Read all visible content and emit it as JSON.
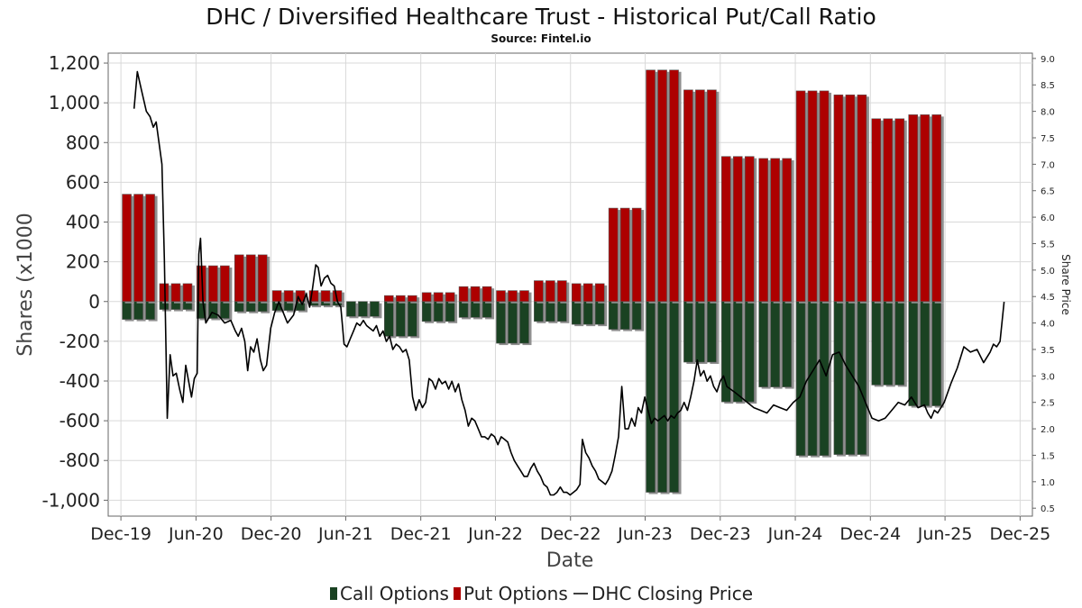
{
  "chart_data": {
    "type": "bar",
    "title": "DHC / Diversified Healthcare Trust - Historical Put/Call Ratio",
    "subtitle": "Source: Fintel.io",
    "xlabel": "Date",
    "ylabel": "Shares (x1000",
    "ylabel_right": "Share Price",
    "ylim": [
      -1080,
      1250
    ],
    "ylim_right": [
      0.35,
      9.1
    ],
    "xlim": [
      "2019-10-31",
      "2025-12-31"
    ],
    "grid": true,
    "legend_position": "bottom",
    "y_ticks": [
      "1,200",
      "1,000",
      "800",
      "600",
      "400",
      "200",
      "0",
      "-200",
      "-400",
      "-600",
      "-800",
      "-1,000"
    ],
    "y_tick_values": [
      1200,
      1000,
      800,
      600,
      400,
      200,
      0,
      -200,
      -400,
      -600,
      -800,
      -1000
    ],
    "y_right_ticks": [
      "9.0",
      "8.5",
      "8.0",
      "7.5",
      "7.0",
      "6.5",
      "6.0",
      "5.5",
      "5.0",
      "4.5",
      "4.0",
      "3.5",
      "3.0",
      "2.5",
      "2.0",
      "1.5",
      "1.0",
      "0.5"
    ],
    "y_right_tick_values": [
      9.0,
      8.5,
      8.0,
      7.5,
      7.0,
      6.5,
      6.0,
      5.5,
      5.0,
      4.5,
      4.0,
      3.5,
      3.0,
      2.5,
      2.0,
      1.5,
      1.0,
      0.5
    ],
    "x_ticks": [
      "Dec-19",
      "Jun-20",
      "Dec-20",
      "Jun-21",
      "Dec-21",
      "Jun-22",
      "Dec-22",
      "Jun-23",
      "Dec-23",
      "Jun-24",
      "Dec-24",
      "Jun-25",
      "Dec-25"
    ],
    "x_tick_dates": [
      "2019-12-01",
      "2020-06-01",
      "2020-12-01",
      "2021-06-01",
      "2021-12-01",
      "2022-06-01",
      "2022-12-01",
      "2023-06-01",
      "2023-12-01",
      "2024-06-01",
      "2024-12-01",
      "2025-06-01",
      "2025-12-01"
    ],
    "colors": {
      "call": "#1a4222",
      "put": "#ad0000",
      "price": "#000000",
      "grid": "#d9d9d9"
    },
    "series": [
      {
        "name": "Call Options",
        "type": "bar",
        "dates": [
          "2020-01-15",
          "2020-04-15",
          "2020-07-15",
          "2020-10-15",
          "2021-01-15",
          "2021-04-15",
          "2021-07-15",
          "2021-10-15",
          "2022-01-15",
          "2022-04-15",
          "2022-07-15",
          "2022-10-15",
          "2023-01-15",
          "2023-04-15",
          "2023-07-15",
          "2023-10-15",
          "2024-01-15",
          "2024-04-15",
          "2024-07-15",
          "2024-10-15",
          "2025-01-15",
          "2025-04-15"
        ],
        "values": [
          -90,
          -40,
          -85,
          -50,
          -45,
          -20,
          -75,
          -175,
          -100,
          -80,
          -210,
          -100,
          -115,
          -140,
          -960,
          -305,
          -505,
          -430,
          -775,
          -770,
          -420,
          -525
        ]
      },
      {
        "name": "Put Options",
        "type": "bar",
        "dates": [
          "2020-01-15",
          "2020-04-15",
          "2020-07-15",
          "2020-10-15",
          "2021-01-15",
          "2021-04-15",
          "2021-07-15",
          "2021-10-15",
          "2022-01-15",
          "2022-04-15",
          "2022-07-15",
          "2022-10-15",
          "2023-01-15",
          "2023-04-15",
          "2023-07-15",
          "2023-10-15",
          "2024-01-15",
          "2024-04-15",
          "2024-07-15",
          "2024-10-15",
          "2025-01-15",
          "2025-04-15"
        ],
        "values": [
          540,
          90,
          180,
          235,
          55,
          55,
          0,
          30,
          45,
          75,
          55,
          105,
          90,
          470,
          1165,
          1065,
          730,
          720,
          1060,
          1040,
          920,
          940
        ]
      },
      {
        "name": "DHC Closing Price",
        "type": "line",
        "points": [
          [
            "2020-01-02",
            8.05
          ],
          [
            "2020-01-10",
            8.75
          ],
          [
            "2020-01-20",
            8.4
          ],
          [
            "2020-02-01",
            8.0
          ],
          [
            "2020-02-10",
            7.9
          ],
          [
            "2020-02-18",
            7.7
          ],
          [
            "2020-02-25",
            7.8
          ],
          [
            "2020-03-02",
            7.45
          ],
          [
            "2020-03-10",
            7.0
          ],
          [
            "2020-03-16",
            5.2
          ],
          [
            "2020-03-23",
            2.2
          ],
          [
            "2020-03-30",
            3.4
          ],
          [
            "2020-04-06",
            3.0
          ],
          [
            "2020-04-14",
            3.05
          ],
          [
            "2020-04-22",
            2.75
          ],
          [
            "2020-04-30",
            2.5
          ],
          [
            "2020-05-07",
            3.2
          ],
          [
            "2020-05-14",
            2.9
          ],
          [
            "2020-05-21",
            2.6
          ],
          [
            "2020-05-28",
            2.95
          ],
          [
            "2020-06-04",
            3.05
          ],
          [
            "2020-06-08",
            5.3
          ],
          [
            "2020-06-12",
            5.6
          ],
          [
            "2020-06-18",
            4.4
          ],
          [
            "2020-06-25",
            4.0
          ],
          [
            "2020-07-10",
            4.2
          ],
          [
            "2020-07-25",
            4.15
          ],
          [
            "2020-08-10",
            4.0
          ],
          [
            "2020-08-25",
            4.05
          ],
          [
            "2020-09-05",
            3.85
          ],
          [
            "2020-09-12",
            3.75
          ],
          [
            "2020-09-20",
            3.9
          ],
          [
            "2020-09-28",
            3.65
          ],
          [
            "2020-10-05",
            3.1
          ],
          [
            "2020-10-12",
            3.55
          ],
          [
            "2020-10-20",
            3.45
          ],
          [
            "2020-10-28",
            3.7
          ],
          [
            "2020-11-05",
            3.3
          ],
          [
            "2020-11-12",
            3.1
          ],
          [
            "2020-11-20",
            3.2
          ],
          [
            "2020-11-30",
            3.9
          ],
          [
            "2020-12-10",
            4.2
          ],
          [
            "2020-12-20",
            4.4
          ],
          [
            "2021-01-10",
            4.0
          ],
          [
            "2021-01-25",
            4.15
          ],
          [
            "2021-02-05",
            4.5
          ],
          [
            "2021-02-15",
            4.35
          ],
          [
            "2021-02-25",
            4.55
          ],
          [
            "2021-03-05",
            4.3
          ],
          [
            "2021-03-12",
            4.65
          ],
          [
            "2021-03-20",
            5.1
          ],
          [
            "2021-03-26",
            5.05
          ],
          [
            "2021-04-02",
            4.7
          ],
          [
            "2021-04-10",
            4.85
          ],
          [
            "2021-04-18",
            4.9
          ],
          [
            "2021-04-26",
            4.75
          ],
          [
            "2021-05-04",
            4.7
          ],
          [
            "2021-05-12",
            4.4
          ],
          [
            "2021-05-20",
            4.3
          ],
          [
            "2021-05-28",
            3.6
          ],
          [
            "2021-06-04",
            3.55
          ],
          [
            "2021-06-12",
            3.7
          ],
          [
            "2021-06-20",
            3.85
          ],
          [
            "2021-06-28",
            4.0
          ],
          [
            "2021-07-06",
            3.95
          ],
          [
            "2021-07-14",
            4.05
          ],
          [
            "2021-07-22",
            3.95
          ],
          [
            "2021-07-30",
            3.9
          ],
          [
            "2021-08-07",
            3.85
          ],
          [
            "2021-08-15",
            3.95
          ],
          [
            "2021-08-23",
            3.75
          ],
          [
            "2021-08-31",
            3.85
          ],
          [
            "2021-09-08",
            3.65
          ],
          [
            "2021-09-16",
            3.75
          ],
          [
            "2021-09-24",
            3.5
          ],
          [
            "2021-10-02",
            3.6
          ],
          [
            "2021-10-10",
            3.55
          ],
          [
            "2021-10-18",
            3.45
          ],
          [
            "2021-10-26",
            3.5
          ],
          [
            "2021-11-03",
            3.3
          ],
          [
            "2021-11-11",
            2.6
          ],
          [
            "2021-11-19",
            2.35
          ],
          [
            "2021-11-27",
            2.55
          ],
          [
            "2021-12-05",
            2.4
          ],
          [
            "2021-12-13",
            2.5
          ],
          [
            "2021-12-21",
            2.95
          ],
          [
            "2021-12-29",
            2.9
          ],
          [
            "2022-01-06",
            2.75
          ],
          [
            "2022-01-14",
            2.95
          ],
          [
            "2022-01-22",
            2.85
          ],
          [
            "2022-01-30",
            2.9
          ],
          [
            "2022-02-07",
            2.75
          ],
          [
            "2022-02-15",
            2.9
          ],
          [
            "2022-02-23",
            2.7
          ],
          [
            "2022-03-03",
            2.85
          ],
          [
            "2022-03-11",
            2.55
          ],
          [
            "2022-03-19",
            2.35
          ],
          [
            "2022-03-27",
            2.05
          ],
          [
            "2022-04-04",
            2.2
          ],
          [
            "2022-04-12",
            2.15
          ],
          [
            "2022-04-20",
            2.0
          ],
          [
            "2022-04-28",
            1.85
          ],
          [
            "2022-05-06",
            1.85
          ],
          [
            "2022-05-14",
            1.8
          ],
          [
            "2022-05-22",
            1.9
          ],
          [
            "2022-05-30",
            1.85
          ],
          [
            "2022-06-07",
            1.7
          ],
          [
            "2022-06-15",
            1.85
          ],
          [
            "2022-06-23",
            1.8
          ],
          [
            "2022-07-01",
            1.75
          ],
          [
            "2022-07-09",
            1.55
          ],
          [
            "2022-07-17",
            1.4
          ],
          [
            "2022-07-25",
            1.3
          ],
          [
            "2022-08-02",
            1.2
          ],
          [
            "2022-08-10",
            1.1
          ],
          [
            "2022-08-18",
            1.1
          ],
          [
            "2022-08-26",
            1.25
          ],
          [
            "2022-09-03",
            1.35
          ],
          [
            "2022-09-11",
            1.2
          ],
          [
            "2022-09-19",
            1.1
          ],
          [
            "2022-09-27",
            0.95
          ],
          [
            "2022-10-05",
            0.9
          ],
          [
            "2022-10-13",
            0.75
          ],
          [
            "2022-10-21",
            0.75
          ],
          [
            "2022-10-29",
            0.8
          ],
          [
            "2022-11-06",
            0.9
          ],
          [
            "2022-11-14",
            0.8
          ],
          [
            "2022-11-22",
            0.8
          ],
          [
            "2022-11-30",
            0.75
          ],
          [
            "2022-12-08",
            0.8
          ],
          [
            "2022-12-16",
            0.85
          ],
          [
            "2022-12-24",
            0.95
          ],
          [
            "2022-12-30",
            1.8
          ],
          [
            "2023-01-07",
            1.55
          ],
          [
            "2023-01-15",
            1.45
          ],
          [
            "2023-01-23",
            1.3
          ],
          [
            "2023-01-31",
            1.2
          ],
          [
            "2023-02-08",
            1.05
          ],
          [
            "2023-02-16",
            1.0
          ],
          [
            "2023-02-24",
            0.95
          ],
          [
            "2023-03-04",
            1.05
          ],
          [
            "2023-03-12",
            1.2
          ],
          [
            "2023-03-20",
            1.5
          ],
          [
            "2023-03-28",
            1.85
          ],
          [
            "2023-04-05",
            2.8
          ],
          [
            "2023-04-13",
            2.0
          ],
          [
            "2023-04-21",
            2.0
          ],
          [
            "2023-04-29",
            2.2
          ],
          [
            "2023-05-07",
            2.05
          ],
          [
            "2023-05-15",
            2.4
          ],
          [
            "2023-05-23",
            2.3
          ],
          [
            "2023-05-31",
            2.6
          ],
          [
            "2023-06-08",
            2.35
          ],
          [
            "2023-06-16",
            2.1
          ],
          [
            "2023-06-24",
            2.2
          ],
          [
            "2023-07-02",
            2.15
          ],
          [
            "2023-07-10",
            2.2
          ],
          [
            "2023-07-18",
            2.25
          ],
          [
            "2023-07-26",
            2.15
          ],
          [
            "2023-08-03",
            2.25
          ],
          [
            "2023-08-11",
            2.2
          ],
          [
            "2023-08-19",
            2.3
          ],
          [
            "2023-08-27",
            2.35
          ],
          [
            "2023-09-04",
            2.5
          ],
          [
            "2023-09-12",
            2.35
          ],
          [
            "2023-09-20",
            2.6
          ],
          [
            "2023-09-28",
            2.9
          ],
          [
            "2023-10-06",
            3.3
          ],
          [
            "2023-10-14",
            3.0
          ],
          [
            "2023-10-22",
            3.1
          ],
          [
            "2023-10-30",
            2.9
          ],
          [
            "2023-11-07",
            3.0
          ],
          [
            "2023-11-15",
            2.8
          ],
          [
            "2023-11-23",
            2.7
          ],
          [
            "2023-12-01",
            2.9
          ],
          [
            "2023-12-09",
            3.0
          ],
          [
            "2023-12-17",
            2.8
          ],
          [
            "2024-01-04",
            2.7
          ],
          [
            "2024-01-20",
            2.6
          ],
          [
            "2024-02-05",
            2.5
          ],
          [
            "2024-02-21",
            2.4
          ],
          [
            "2024-03-08",
            2.35
          ],
          [
            "2024-03-24",
            2.3
          ],
          [
            "2024-04-09",
            2.45
          ],
          [
            "2024-04-25",
            2.4
          ],
          [
            "2024-05-11",
            2.35
          ],
          [
            "2024-05-27",
            2.5
          ],
          [
            "2024-06-12",
            2.6
          ],
          [
            "2024-06-28",
            2.9
          ],
          [
            "2024-07-14",
            3.1
          ],
          [
            "2024-07-30",
            3.3
          ],
          [
            "2024-08-15",
            3.0
          ],
          [
            "2024-08-31",
            3.4
          ],
          [
            "2024-09-16",
            3.45
          ],
          [
            "2024-10-02",
            3.2
          ],
          [
            "2024-10-18",
            3.0
          ],
          [
            "2024-11-03",
            2.8
          ],
          [
            "2024-11-19",
            2.5
          ],
          [
            "2024-12-05",
            2.2
          ],
          [
            "2024-12-21",
            2.15
          ],
          [
            "2025-01-06",
            2.2
          ],
          [
            "2025-01-22",
            2.35
          ],
          [
            "2025-02-07",
            2.5
          ],
          [
            "2025-02-23",
            2.45
          ],
          [
            "2025-03-11",
            2.6
          ],
          [
            "2025-03-27",
            2.4
          ],
          [
            "2025-04-12",
            2.45
          ],
          [
            "2025-04-20",
            2.3
          ],
          [
            "2025-04-28",
            2.2
          ],
          [
            "2025-05-06",
            2.35
          ],
          [
            "2025-05-14",
            2.3
          ],
          [
            "2025-05-30",
            2.5
          ],
          [
            "2025-06-15",
            2.85
          ],
          [
            "2025-07-01",
            3.15
          ],
          [
            "2025-07-17",
            3.55
          ],
          [
            "2025-08-02",
            3.45
          ],
          [
            "2025-08-18",
            3.5
          ],
          [
            "2025-09-03",
            3.25
          ],
          [
            "2025-09-19",
            3.45
          ],
          [
            "2025-09-27",
            3.6
          ],
          [
            "2025-10-05",
            3.55
          ],
          [
            "2025-10-13",
            3.65
          ],
          [
            "2025-10-23",
            4.4
          ]
        ]
      }
    ]
  }
}
